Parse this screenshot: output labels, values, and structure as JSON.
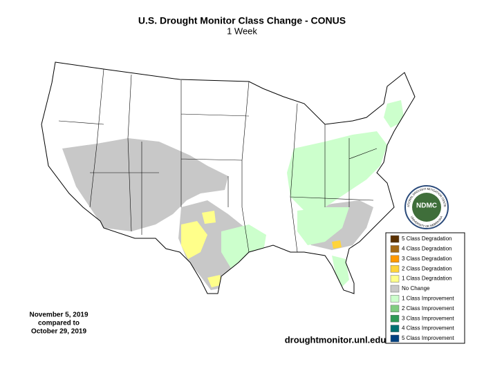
{
  "header": {
    "title": "U.S. Drought Monitor Class Change - CONUS",
    "subtitle": "1 Week"
  },
  "legend": {
    "items": [
      {
        "label": "5 Class Degradation",
        "color": "#5a3000"
      },
      {
        "label": "4 Class Degradation",
        "color": "#a56a16"
      },
      {
        "label": "3 Class Degradation",
        "color": "#ff9900"
      },
      {
        "label": "2 Class Degradation",
        "color": "#ffd43a"
      },
      {
        "label": "1 Class Degradation",
        "color": "#ffff8a"
      },
      {
        "label": "No Change",
        "color": "#c8c8c8"
      },
      {
        "label": "1 Class Improvement",
        "color": "#ccffcc"
      },
      {
        "label": "2 Class Improvement",
        "color": "#80cc80"
      },
      {
        "label": "3 Class Improvement",
        "color": "#2e9955"
      },
      {
        "label": "4 Class Improvement",
        "color": "#007070"
      },
      {
        "label": "5 Class Improvement",
        "color": "#004080"
      }
    ]
  },
  "date": {
    "lines": [
      "November 5, 2019",
      "compared to",
      "October 29, 2019"
    ]
  },
  "source": "droughtmonitor.unl.edu",
  "logo": {
    "label": "NDMC",
    "ring_top": "NATIONAL DROUGHT MITIGATION CENTER",
    "ring_bottom": "UNIVERSITY OF NEBRASKA"
  }
}
